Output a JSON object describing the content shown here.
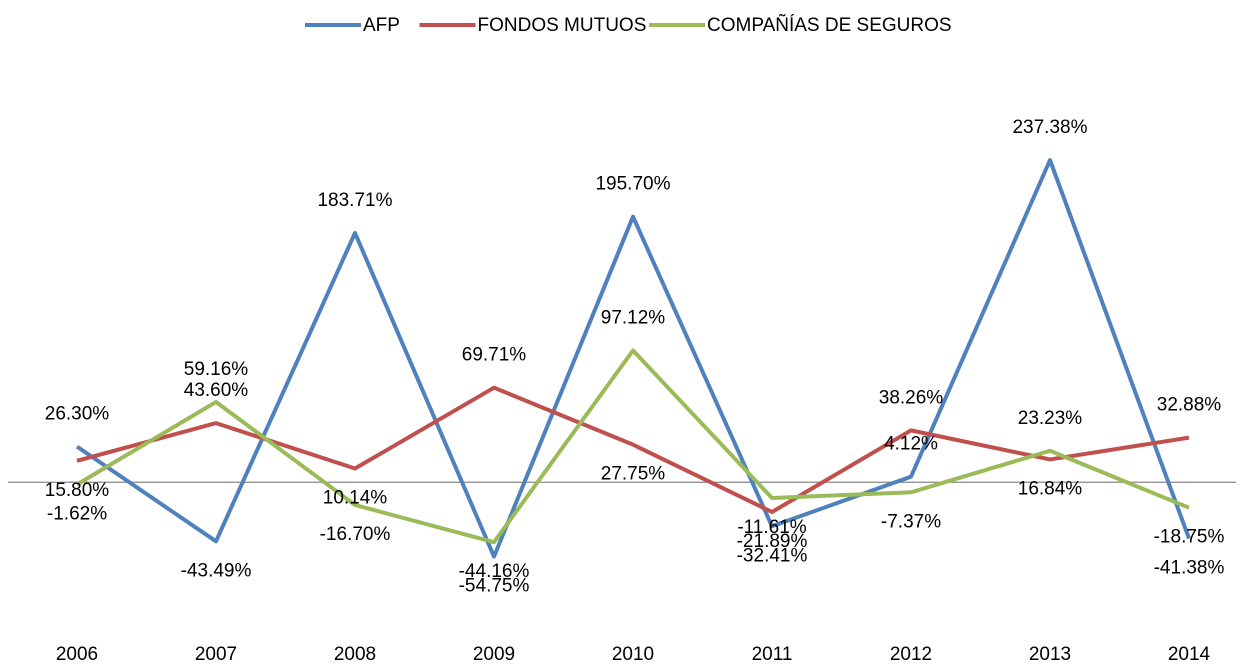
{
  "chart_data": {
    "type": "line",
    "categories": [
      "2006",
      "2007",
      "2008",
      "2009",
      "2010",
      "2011",
      "2012",
      "2013",
      "2014"
    ],
    "series": [
      {
        "name": "AFP",
        "color": "#4f81bd",
        "values": [
          26.3,
          -43.49,
          183.71,
          -54.75,
          195.7,
          -32.41,
          4.12,
          237.38,
          -41.38
        ],
        "value_labels": [
          "26.30%",
          "-43.49%",
          "183.71%",
          "-54.75%",
          "195.70%",
          "-32.41%",
          "4.12%",
          "237.38%",
          "-41.38%"
        ]
      },
      {
        "name": "FONDOS MUTUOS",
        "color": "#c0504d",
        "values": [
          15.8,
          43.6,
          10.14,
          69.71,
          27.75,
          -21.89,
          38.26,
          16.84,
          32.88
        ],
        "value_labels": [
          "15.80%",
          "43.60%",
          "10.14%",
          "69.71%",
          "27.75%",
          "-21.89%",
          "38.26%",
          "16.84%",
          "32.88%"
        ]
      },
      {
        "name": "COMPAÑÍAS DE SEGUROS",
        "color": "#9bbb59",
        "values": [
          -1.62,
          59.16,
          -16.7,
          -44.16,
          97.12,
          -11.61,
          -7.37,
          23.23,
          -18.75
        ],
        "value_labels": [
          "-1.62%",
          "59.16%",
          "-16.70%",
          "-44.16%",
          "97.12%",
          "-11.61%",
          "-7.37%",
          "23.23%",
          "-18.75%"
        ]
      }
    ],
    "ylim": [
      -100,
      250
    ],
    "legend": "top"
  }
}
